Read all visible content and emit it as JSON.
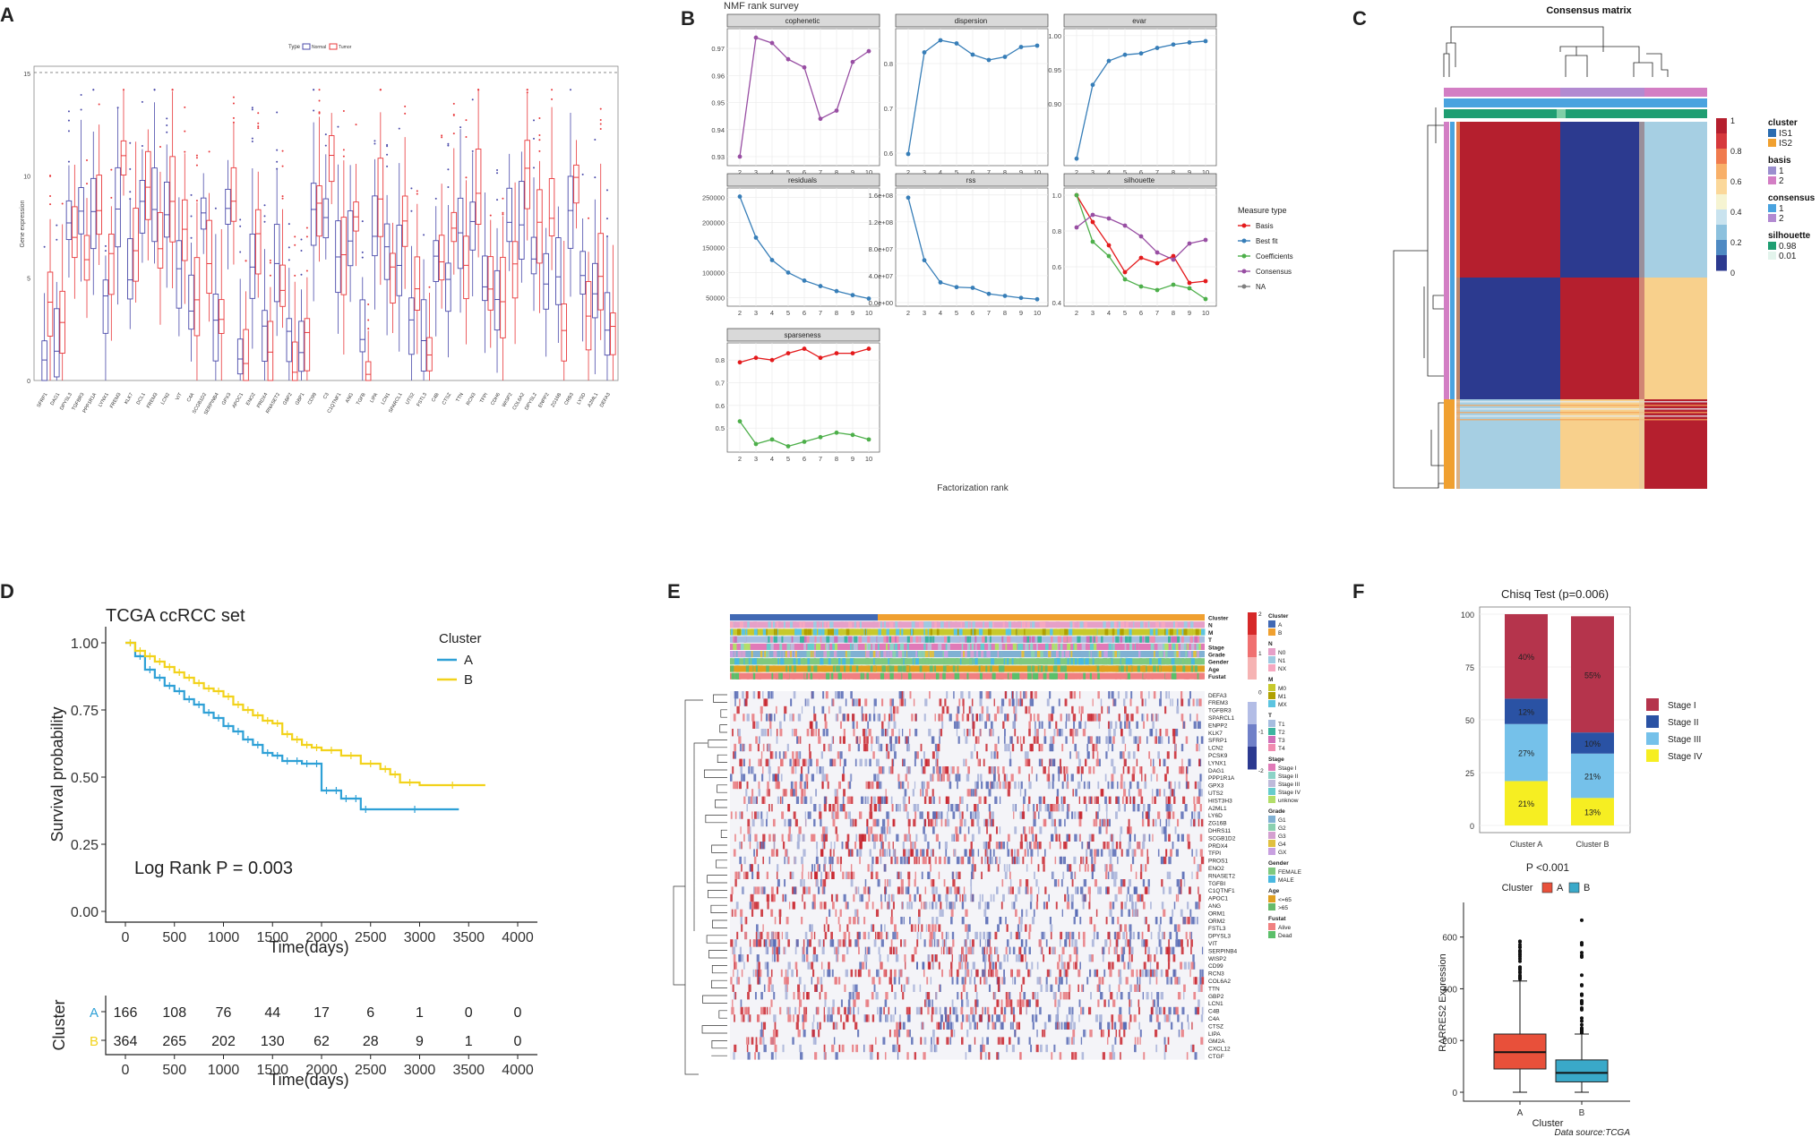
{
  "panels": {
    "A": "A",
    "B": "B",
    "C": "C",
    "D": "D",
    "E": "E",
    "F": "F"
  },
  "colors": {
    "normal": "#4a4aaa",
    "tumor": "#e8383b",
    "basis": "#e41a1c",
    "bestfit": "#377eb8",
    "coefficients": "#4daf4a",
    "consensus": "#984ea3",
    "na": "#7f7f7f",
    "clusterA_km": "#2ea0d6",
    "clusterB_km": "#f2d21b",
    "stage1": "#b5344c",
    "stage2": "#2a52a4",
    "stage3": "#75c1ea",
    "stage4": "#f6ee22",
    "boxA": "#e8503a",
    "boxB": "#3aa9c9",
    "heat_high": "#c8232d",
    "heat_low": "#2b3990"
  },
  "panelA": {
    "legend_title": "Type",
    "legend_items": [
      "Normal",
      "Tumor"
    ],
    "ylabel": "Gene expression",
    "yticks": [
      "0",
      "5",
      "10",
      "15"
    ],
    "ylim": [
      0,
      15
    ],
    "genes": [
      "SFRP1",
      "DAG1",
      "DPYSL3",
      "TGFBR3",
      "PPP1R1A",
      "LYNX1",
      "FREM3",
      "KLK7",
      "DCL1",
      "FREM3",
      "LCN2",
      "VIT",
      "C4A",
      "SCGB1D2",
      "SERPINB4",
      "GPX3",
      "APOC1",
      "ENO2",
      "PRDX4",
      "RNASET2",
      "GBP2",
      "GBP1",
      "CD99",
      "C3",
      "C1QTNF1",
      "ANG",
      "TGFB",
      "LIPA",
      "LCN1",
      "SPARCL1",
      "UTS2",
      "FSTL3",
      "C4B",
      "CTSZ",
      "TTN",
      "RCN3",
      "TFPI",
      "CDH6",
      "WISP2",
      "COL6A2",
      "DPYSL2",
      "ENPP2",
      "ZG16B",
      "CRB3",
      "LYSD",
      "A2ML1",
      "DEFA3"
    ]
  },
  "panelB": {
    "title": "NMF rank survey",
    "xlabel": "Factorization rank",
    "legend_title": "Measure type",
    "legend_items": [
      "Basis",
      "Best fit",
      "Coefficients",
      "Consensus",
      "NA"
    ],
    "x": [
      2,
      3,
      4,
      5,
      6,
      7,
      8,
      9,
      10
    ],
    "facets": [
      {
        "name": "cophenetic",
        "yticks": [
          "0.93",
          "0.94",
          "0.95",
          "0.96",
          "0.97"
        ],
        "ylim": [
          0.928,
          0.976
        ],
        "series": [
          {
            "type": "consensus",
            "values": [
              0.93,
              0.974,
              0.972,
              0.966,
              0.963,
              0.944,
              0.947,
              0.965,
              0.969
            ]
          }
        ]
      },
      {
        "name": "dispersion",
        "yticks": [
          "0.6",
          "0.7",
          "0.8"
        ],
        "ylim": [
          0.58,
          0.87
        ],
        "series": [
          {
            "type": "bestfit",
            "values": [
              0.598,
              0.825,
              0.852,
              0.845,
              0.82,
              0.808,
              0.815,
              0.837,
              0.84
            ]
          }
        ]
      },
      {
        "name": "evar",
        "yticks": [
          "0.90",
          "0.95",
          "1.00"
        ],
        "ylim": [
          0.815,
          1.005
        ],
        "series": [
          {
            "type": "bestfit",
            "values": [
              0.82,
              0.928,
              0.963,
              0.972,
              0.974,
              0.982,
              0.987,
              0.99,
              0.992
            ]
          }
        ]
      },
      {
        "name": "residuals",
        "yticks": [
          "50000",
          "100000",
          "150000",
          "200000",
          "250000"
        ],
        "ylim": [
          40000,
          262000
        ],
        "series": [
          {
            "type": "bestfit",
            "values": [
              252000,
              170000,
              125000,
              100000,
              84000,
              73000,
              63000,
              55000,
              48000
            ]
          }
        ]
      },
      {
        "name": "rss",
        "yticks": [
          "0.0e+00",
          "4.0e+07",
          "8.0e+07",
          "1.2e+08",
          "1.6e+08"
        ],
        "ylim": [
          0,
          165000000.0
        ],
        "series": [
          {
            "type": "bestfit",
            "values": [
              156000000.0,
              63000000.0,
              30000000.0,
              23000000.0,
              22000000.0,
              13000000.0,
              10000000.0,
              7000000.0,
              5000000.0
            ]
          }
        ]
      },
      {
        "name": "silhouette",
        "yticks": [
          "0.4",
          "0.6",
          "0.8",
          "1.0"
        ],
        "ylim": [
          0.4,
          1.02
        ],
        "series": [
          {
            "type": "basis",
            "values": [
              1.0,
              0.85,
              0.72,
              0.57,
              0.65,
              0.62,
              0.66,
              0.51,
              0.52
            ]
          },
          {
            "type": "coefficients",
            "values": [
              1.0,
              0.74,
              0.66,
              0.53,
              0.49,
              0.47,
              0.5,
              0.48,
              0.42
            ]
          },
          {
            "type": "consensus",
            "values": [
              0.82,
              0.89,
              0.87,
              0.83,
              0.77,
              0.68,
              0.64,
              0.73,
              0.75
            ]
          }
        ]
      },
      {
        "name": "sparseness",
        "yticks": [
          "0.5",
          "0.6",
          "0.7",
          "0.8"
        ],
        "ylim": [
          0.41,
          0.86
        ],
        "series": [
          {
            "type": "basis",
            "values": [
              0.79,
              0.81,
              0.8,
              0.83,
              0.85,
              0.81,
              0.83,
              0.83,
              0.85
            ]
          },
          {
            "type": "coefficients",
            "values": [
              0.53,
              0.43,
              0.45,
              0.42,
              0.44,
              0.46,
              0.48,
              0.47,
              0.45
            ]
          }
        ]
      }
    ]
  },
  "panelC": {
    "title": "Consensus matrix",
    "colorbar_ticks": [
      "1",
      "0.8",
      "0.6",
      "0.4",
      "0.2",
      "0"
    ],
    "legend": [
      {
        "title": "cluster",
        "items": [
          {
            "label": "IS1",
            "color": "#2b6cb0"
          },
          {
            "label": "IS2",
            "color": "#f0a030"
          }
        ]
      },
      {
        "title": "basis",
        "items": [
          {
            "label": "1",
            "color": "#9b8fcf"
          },
          {
            "label": "2",
            "color": "#d37ec4"
          }
        ]
      },
      {
        "title": "consensus",
        "items": [
          {
            "label": "1",
            "color": "#4aa3df"
          },
          {
            "label": "2",
            "color": "#b28ad1"
          }
        ]
      },
      {
        "title": "silhouette",
        "items": [
          {
            "label": "0.98",
            "color": "#1f9e72"
          },
          {
            "label": "0.01",
            "color": "#e3f4ec"
          }
        ]
      }
    ]
  },
  "panelD": {
    "title": "TCGA ccRCC set",
    "ylabel": "Survival probability",
    "xlabel": "Time(days)",
    "legend_title": "Cluster",
    "legend_items": [
      "A",
      "B"
    ],
    "pvalue": "Log Rank P = 0.003",
    "xticks": [
      "0",
      "500",
      "1000",
      "1500",
      "2000",
      "2500",
      "3000",
      "3500",
      "4000"
    ],
    "yticks": [
      "0.00",
      "0.25",
      "0.50",
      "0.75",
      "1.00"
    ],
    "chart_data": {
      "type": "line",
      "series": [
        {
          "name": "A",
          "x": [
            0,
            100,
            200,
            300,
            400,
            500,
            600,
            700,
            800,
            900,
            1000,
            1100,
            1200,
            1300,
            1400,
            1500,
            1600,
            1700,
            1800,
            1900,
            2000,
            2100,
            2200,
            2300,
            2400,
            2500,
            3400
          ],
          "y": [
            1.0,
            0.95,
            0.9,
            0.87,
            0.84,
            0.82,
            0.79,
            0.77,
            0.74,
            0.72,
            0.69,
            0.67,
            0.64,
            0.62,
            0.59,
            0.58,
            0.56,
            0.56,
            0.55,
            0.55,
            0.45,
            0.45,
            0.42,
            0.42,
            0.38,
            0.38,
            0.38
          ]
        },
        {
          "name": "B",
          "x": [
            0,
            100,
            200,
            300,
            400,
            500,
            600,
            700,
            800,
            900,
            1000,
            1100,
            1200,
            1300,
            1400,
            1500,
            1600,
            1700,
            1800,
            1900,
            2000,
            2200,
            2400,
            2600,
            2700,
            2800,
            3000,
            3670
          ],
          "y": [
            1.0,
            0.97,
            0.95,
            0.93,
            0.91,
            0.89,
            0.87,
            0.85,
            0.83,
            0.82,
            0.8,
            0.77,
            0.75,
            0.73,
            0.71,
            0.7,
            0.66,
            0.64,
            0.62,
            0.61,
            0.6,
            0.58,
            0.55,
            0.53,
            0.51,
            0.48,
            0.47,
            0.47
          ]
        }
      ]
    },
    "risk_table": {
      "ylabel": "Cluster",
      "rows": [
        {
          "name": "A",
          "values": [
            "166",
            "108",
            "76",
            "44",
            "17",
            "6",
            "1",
            "0",
            "0"
          ]
        },
        {
          "name": "B",
          "values": [
            "364",
            "265",
            "202",
            "130",
            "62",
            "28",
            "9",
            "1",
            "0"
          ]
        }
      ]
    }
  },
  "panelE": {
    "annotation_tracks": [
      "Cluster",
      "N",
      "M",
      "T",
      "Stage",
      "Grade",
      "Gender",
      "Age",
      "Fustat"
    ],
    "genes": [
      "DEFA3",
      "FREM3",
      "TGFBR3",
      "SPARCL1",
      "ENPP2",
      "KLK7",
      "SFRP1",
      "LCN2",
      "PCSK9",
      "LYNX1",
      "DAG1",
      "PPP1R1A",
      "GPX3",
      "UTS2",
      "HIST3H3",
      "A2ML1",
      "LY6D",
      "ZG16B",
      "DHRS11",
      "SCGB1D2",
      "PRDX4",
      "TFPI",
      "PROS1",
      "ENO2",
      "RNASET2",
      "TGFBI",
      "C1QTNF1",
      "APOC1",
      "ANG",
      "ORM1",
      "ORM2",
      "FSTL3",
      "DPYSL3",
      "VIT",
      "SERPINB4",
      "WISP2",
      "CD99",
      "RCN3",
      "COL6A2",
      "TTN",
      "GBP2",
      "LCN1",
      "C4B",
      "C4A",
      "CTSZ",
      "LIPA",
      "GM2A",
      "CXCL12",
      "CTGF"
    ],
    "colorbar_ticks": [
      "2",
      "1",
      "0",
      "-1",
      "-2"
    ],
    "legend": [
      {
        "title": "Cluster",
        "items": [
          {
            "label": "A",
            "color": "#4169b4"
          },
          {
            "label": "B",
            "color": "#f0a030"
          }
        ]
      },
      {
        "title": "N",
        "items": [
          {
            "label": "N0",
            "color": "#e6a0c8"
          },
          {
            "label": "N1",
            "color": "#9ecae1"
          },
          {
            "label": "NX",
            "color": "#f6a8c0"
          }
        ]
      },
      {
        "title": "M",
        "items": [
          {
            "label": "M0",
            "color": "#c7c92c"
          },
          {
            "label": "M1",
            "color": "#b0a000"
          },
          {
            "label": "MX",
            "color": "#5cc4e0"
          }
        ]
      },
      {
        "title": "T",
        "items": [
          {
            "label": "T1",
            "color": "#a6bde0"
          },
          {
            "label": "T2",
            "color": "#3cb4a0"
          },
          {
            "label": "T3",
            "color": "#d070b8"
          },
          {
            "label": "T4",
            "color": "#f08cb0"
          }
        ]
      },
      {
        "title": "Stage",
        "items": [
          {
            "label": "Stage I",
            "color": "#e07ab8"
          },
          {
            "label": "Stage II",
            "color": "#8dd3c7"
          },
          {
            "label": "Stage III",
            "color": "#bebada"
          },
          {
            "label": "Stage IV",
            "color": "#6cc"
          },
          {
            "label": "unknow",
            "color": "#b3de69"
          }
        ]
      },
      {
        "title": "Grade",
        "items": [
          {
            "label": "G1",
            "color": "#80b1d3"
          },
          {
            "label": "G2",
            "color": "#8bd0b0"
          },
          {
            "label": "G3",
            "color": "#d4a0d0"
          },
          {
            "label": "G4",
            "color": "#e0c040"
          },
          {
            "label": "GX",
            "color": "#c8a0e0"
          }
        ]
      },
      {
        "title": "Gender",
        "items": [
          {
            "label": "FEMALE",
            "color": "#7fc97f"
          },
          {
            "label": "MALE",
            "color": "#49b8e0"
          }
        ]
      },
      {
        "title": "Age",
        "items": [
          {
            "label": "<=65",
            "color": "#e0a020"
          },
          {
            "label": ">65",
            "color": "#66bb6a"
          }
        ]
      },
      {
        "title": "Fustat",
        "items": [
          {
            "label": "Alive",
            "color": "#f08080"
          },
          {
            "label": "Dead",
            "color": "#5cbf6a"
          }
        ]
      }
    ]
  },
  "panelF": {
    "bar_title": "Chisq Test (p=0.006)",
    "bar_chart": {
      "type": "bar",
      "categories": [
        "Cluster A",
        "Cluster B"
      ],
      "series": [
        {
          "name": "Stage IV",
          "values": [
            21,
            13
          ]
        },
        {
          "name": "Stage III",
          "values": [
            27,
            21
          ]
        },
        {
          "name": "Stage II",
          "values": [
            12,
            10
          ]
        },
        {
          "name": "Stage I",
          "values": [
            40,
            55
          ]
        }
      ],
      "labels": [
        [
          "21%",
          "27%",
          "12%",
          "40%"
        ],
        [
          "13%",
          "21%",
          "10%",
          "55%"
        ]
      ],
      "yticks": [
        "0",
        "25",
        "50",
        "75",
        "100"
      ],
      "legend_items": [
        "Stage I",
        "Stage II",
        "Stage III",
        "Stage IV"
      ]
    },
    "box_title": "P <0.001",
    "box_legend_title": "Cluster",
    "box_legend_items": [
      "A",
      "B"
    ],
    "box_chart": {
      "type": "box",
      "categories": [
        "A",
        "B"
      ],
      "ylabel": "RARRES2 Expression",
      "xlabel": "Cluster",
      "yticks": [
        "0",
        "200",
        "400",
        "600"
      ],
      "ylim": [
        0,
        720
      ],
      "boxes": [
        {
          "name": "A",
          "min": 0,
          "q1": 90,
          "median": 155,
          "q3": 225,
          "max": 430
        },
        {
          "name": "B",
          "min": 0,
          "q1": 40,
          "median": 75,
          "q3": 125,
          "max": 225
        }
      ]
    },
    "source": "Data source:TCGA"
  }
}
